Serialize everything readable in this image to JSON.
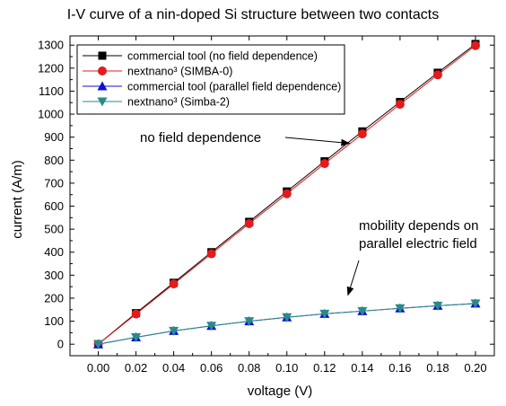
{
  "chart_data": {
    "type": "line",
    "title": "I-V curve of a nin-doped Si structure between two contacts",
    "xlabel": "voltage (V)",
    "ylabel": "current (A/m)",
    "xlim": [
      -0.015,
      0.21
    ],
    "ylim": [
      -50,
      1340
    ],
    "x_ticks": [
      "0.00",
      "0.02",
      "0.04",
      "0.06",
      "0.08",
      "0.10",
      "0.12",
      "0.14",
      "0.16",
      "0.18",
      "0.20"
    ],
    "y_ticks": [
      "0",
      "100",
      "200",
      "300",
      "400",
      "500",
      "600",
      "700",
      "800",
      "900",
      "1000",
      "1100",
      "1200",
      "1300"
    ],
    "x": [
      0.0,
      0.02,
      0.04,
      0.06,
      0.08,
      0.1,
      0.12,
      0.14,
      0.16,
      0.18,
      0.2
    ],
    "grid": false,
    "legend_position": "top-left",
    "series": [
      {
        "name": "commercial tool (no field dependence)",
        "marker": "square",
        "color": "#000000",
        "values": [
          0,
          135,
          267,
          400,
          532,
          664,
          795,
          925,
          1053,
          1180,
          1305
        ]
      },
      {
        "name": "nextnano³ (SIMBA-0)",
        "marker": "circle",
        "color": "#e41a1c",
        "values": [
          0,
          131,
          262,
          393,
          524,
          654,
          785,
          914,
          1043,
          1171,
          1298
        ]
      },
      {
        "name": "commercial tool (parallel field dependence)",
        "marker": "triangle-up",
        "color": "#1010d0",
        "values": [
          0,
          30,
          58,
          80,
          100,
          117,
          132,
          144,
          156,
          167,
          177
        ]
      },
      {
        "name": "nextnano³ (Simba-2)",
        "marker": "triangle-down",
        "color": "#2a8a8a",
        "values": [
          0,
          30,
          58,
          80,
          100,
          117,
          132,
          144,
          156,
          167,
          177
        ]
      }
    ],
    "annotations": [
      {
        "text": "no field dependence",
        "arrow_to": [
          0.135,
          920
        ]
      },
      {
        "lines": [
          "mobility depends on",
          "parallel electric field"
        ],
        "arrow_to": [
          0.13,
          190
        ]
      }
    ]
  }
}
